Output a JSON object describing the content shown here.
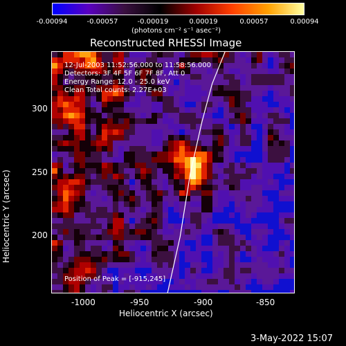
{
  "colorbar": {
    "ticks": [
      "-0.00094",
      "-0.00057",
      "-0.00019",
      "0.00019",
      "0.00057",
      "0.00094"
    ],
    "unit_label": "(photons cm⁻² s⁻¹ asec⁻²)"
  },
  "title": "Reconstructed RHESSI Image",
  "info": {
    "time_range": "12-Jul-2003 11:52:56.000 to 11:58:56.000",
    "detectors": "Detectors: 3F 4F 5F 6F 7F 8F, Att 0",
    "energy": "Energy Range: 12.0 - 25.0 keV",
    "method_counts": "Clean    Total counts: 2.27E+03",
    "peak": "Position of Peak = [-915,245]"
  },
  "axes": {
    "xlabel": "Heliocentric X (arcsec)",
    "ylabel": "Heliocentric Y (arcsec)",
    "x_ticks": [
      "-1000",
      "-950",
      "-900",
      "-850"
    ],
    "y_ticks": [
      "300",
      "250",
      "200"
    ]
  },
  "footer": {
    "date": "3-May-2022 15:07"
  },
  "colors": {
    "background": "#000000",
    "colormap": [
      "#0000ff",
      "#5a00c0",
      "#3a1040",
      "#000000",
      "#a00000",
      "#ff4000",
      "#ffa000",
      "#ffffa0"
    ]
  },
  "chart_data": {
    "type": "heatmap",
    "xlim": [
      -1020,
      -830
    ],
    "ylim": [
      145,
      335
    ],
    "peak": [
      -915,
      245
    ],
    "limb_curve": [
      [
        -930,
        145
      ],
      [
        -920,
        190
      ],
      [
        -912,
        240
      ],
      [
        -903,
        280
      ],
      [
        -895,
        310
      ],
      [
        -885,
        335
      ]
    ]
  }
}
